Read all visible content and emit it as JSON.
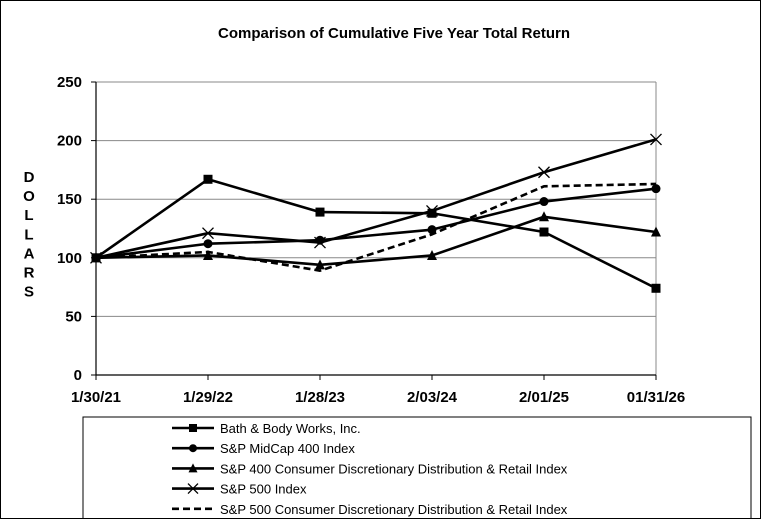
{
  "chart_data": {
    "type": "line",
    "title": "Comparison of Cumulative Five Year Total Return",
    "ylabel": "DOLLARS",
    "xlabel": "",
    "categories": [
      "1/30/21",
      "1/29/22",
      "1/28/23",
      "2/03/24",
      "2/01/25",
      "01/31/26"
    ],
    "ylim": [
      0,
      250
    ],
    "yticks": [
      0,
      50,
      100,
      150,
      200,
      250
    ],
    "grid": true,
    "legend_position": "bottom",
    "series": [
      {
        "name": "Bath & Body Works, Inc.",
        "marker": "square",
        "dashed": false,
        "values": [
          100,
          167,
          139,
          138,
          122,
          74
        ]
      },
      {
        "name": "S&P MidCap 400 Index",
        "marker": "circle",
        "dashed": false,
        "values": [
          100,
          112,
          115,
          124,
          148,
          159
        ]
      },
      {
        "name": "S&P 400 Consumer Discretionary Distribution & Retail Index",
        "marker": "triangle",
        "dashed": false,
        "values": [
          100,
          102,
          94,
          102,
          135,
          122
        ]
      },
      {
        "name": "S&P 500 Index",
        "marker": "x",
        "dashed": false,
        "values": [
          100,
          121,
          113,
          140,
          173,
          201
        ]
      },
      {
        "name": "S&P 500 Consumer Discretionary Distribution & Retail Index",
        "marker": "none",
        "dashed": true,
        "values": [
          100,
          105,
          89,
          120,
          161,
          163
        ]
      }
    ]
  }
}
